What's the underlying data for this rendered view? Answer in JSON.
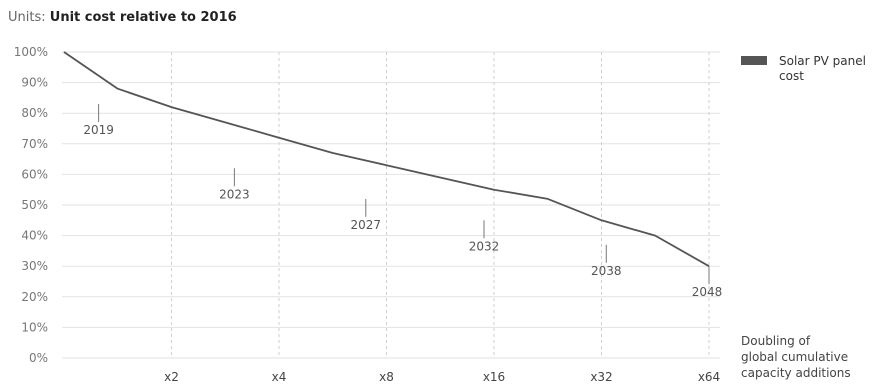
{
  "units": {
    "prefix": "Units:",
    "value": "Unit cost relative to 2016"
  },
  "chart_data": {
    "type": "line",
    "x_scale": "log2",
    "xlim": [
      1,
      64
    ],
    "ylim": [
      0,
      100
    ],
    "y_ticks": [
      0,
      10,
      20,
      30,
      40,
      50,
      60,
      70,
      80,
      90,
      100
    ],
    "y_tick_labels": [
      "0%",
      "10%",
      "20%",
      "30%",
      "40%",
      "50%",
      "60%",
      "70%",
      "80%",
      "90%",
      "100%"
    ],
    "x_ticks": [
      2,
      4,
      8,
      16,
      32,
      64
    ],
    "x_tick_labels": [
      "x2",
      "x4",
      "x8",
      "x16",
      "x32",
      "x64"
    ],
    "xlabel": "Doubling of global cumulative capacity additions",
    "grid": "horizontal-solid-and-vertical-dashed",
    "legend": {
      "placement": "top-right",
      "label": "Solar PV panel cost",
      "color": "#555555"
    },
    "series": [
      {
        "name": "Solar PV panel cost",
        "color": "#555555",
        "x": [
          1,
          1.414,
          2,
          2.828,
          4,
          5.657,
          8,
          11.31,
          16,
          22.63,
          32,
          45.25,
          64
        ],
        "values": [
          100,
          88,
          82,
          77,
          72,
          67,
          63,
          59,
          55,
          52,
          45,
          40,
          30
        ]
      }
    ],
    "annotations": [
      {
        "label": "2019",
        "x": 1.25,
        "y": 83
      },
      {
        "label": "2023",
        "x": 3.0,
        "y": 62
      },
      {
        "label": "2027",
        "x": 7.0,
        "y": 52
      },
      {
        "label": "2032",
        "x": 15.0,
        "y": 45
      },
      {
        "label": "2038",
        "x": 33.0,
        "y": 37
      },
      {
        "label": "2048",
        "x": 64.0,
        "y": 30
      }
    ]
  }
}
